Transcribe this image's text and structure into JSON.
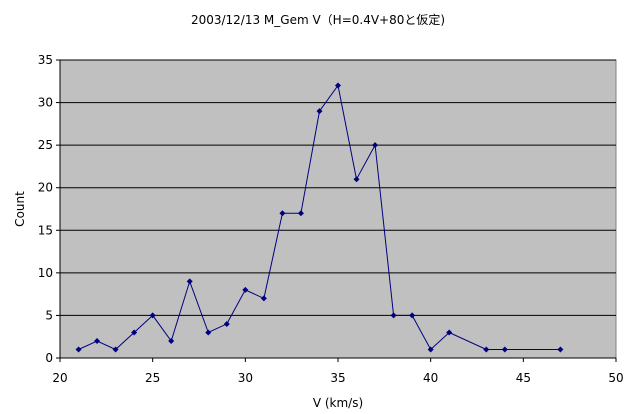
{
  "chart_data": {
    "type": "line",
    "title": "2003/12/13 M_Gem V（H=0.4V+80と仮定)",
    "xlabel": "V (km/s)",
    "ylabel": "Count",
    "xlim": [
      20,
      50
    ],
    "ylim": [
      0,
      35
    ],
    "x_ticks": [
      20,
      25,
      30,
      35,
      40,
      45,
      50
    ],
    "y_ticks": [
      0,
      5,
      10,
      15,
      20,
      25,
      30,
      35
    ],
    "grid": "horizontal",
    "legend": "none",
    "colors": {
      "line": "#000080",
      "marker": "#000080",
      "plot_background": "#c0c0c0",
      "gridline": "#000000"
    },
    "series": [
      {
        "x": [
          21,
          22,
          23,
          24,
          25,
          26,
          27,
          28,
          29,
          30,
          31,
          32,
          33,
          34,
          35,
          36,
          37,
          38,
          39,
          40,
          41,
          43,
          44,
          47
        ],
        "y": [
          1,
          2,
          1,
          3,
          5,
          2,
          9,
          3,
          4,
          8,
          7,
          17,
          17,
          29,
          32,
          21,
          25,
          5,
          5,
          1,
          3,
          1,
          1,
          1
        ]
      }
    ]
  }
}
